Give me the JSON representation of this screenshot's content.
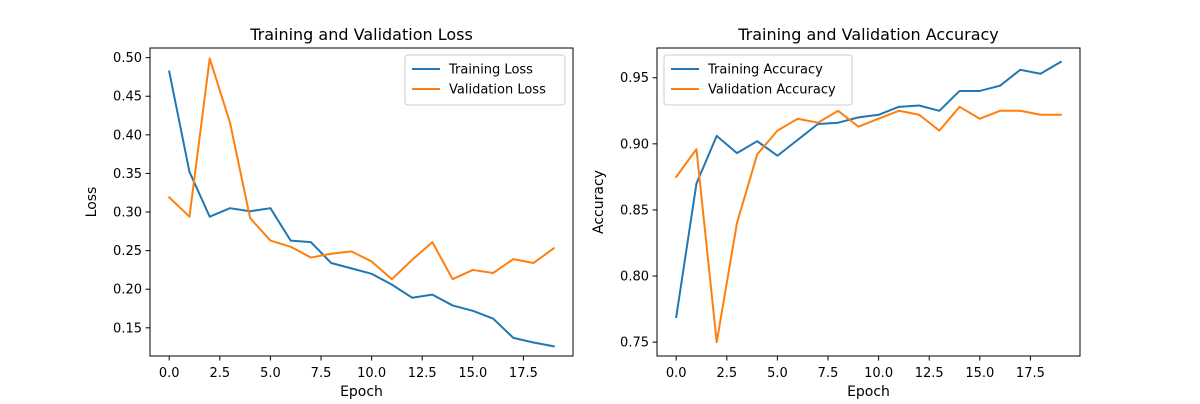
{
  "chart_data": [
    {
      "type": "line",
      "title": "Training and Validation Loss",
      "xlabel": "Epoch",
      "ylabel": "Loss",
      "xlim": [
        -0.95,
        19.95
      ],
      "ylim": [
        0.1135,
        0.5125
      ],
      "x_ticks": [
        0.0,
        2.5,
        5.0,
        7.5,
        10.0,
        12.5,
        15.0,
        17.5
      ],
      "x_tick_labels": [
        "0.0",
        "2.5",
        "5.0",
        "7.5",
        "10.0",
        "12.5",
        "15.0",
        "17.5"
      ],
      "y_ticks": [
        0.15,
        0.2,
        0.25,
        0.3,
        0.35,
        0.4,
        0.45,
        0.5
      ],
      "y_tick_labels": [
        "0.15",
        "0.20",
        "0.25",
        "0.30",
        "0.35",
        "0.40",
        "0.45",
        "0.50"
      ],
      "legend_position": "top-right",
      "grid": false,
      "x": [
        0,
        1,
        2,
        3,
        4,
        5,
        6,
        7,
        8,
        9,
        10,
        11,
        12,
        13,
        14,
        15,
        16,
        17,
        18,
        19
      ],
      "series": [
        {
          "name": "Training Loss",
          "color": "#1f77b4",
          "values": [
            0.482,
            0.352,
            0.294,
            0.305,
            0.301,
            0.305,
            0.263,
            0.261,
            0.234,
            0.227,
            0.22,
            0.206,
            0.189,
            0.193,
            0.179,
            0.172,
            0.162,
            0.137,
            0.131,
            0.126
          ]
        },
        {
          "name": "Validation Loss",
          "color": "#ff7f0e",
          "values": [
            0.319,
            0.294,
            0.499,
            0.416,
            0.292,
            0.263,
            0.255,
            0.241,
            0.246,
            0.249,
            0.236,
            0.213,
            0.238,
            0.261,
            0.213,
            0.225,
            0.221,
            0.239,
            0.234,
            0.253
          ]
        }
      ]
    },
    {
      "type": "line",
      "title": "Training and Validation Accuracy",
      "xlabel": "Epoch",
      "ylabel": "Accuracy",
      "xlim": [
        -0.95,
        19.95
      ],
      "ylim": [
        0.7395,
        0.9725
      ],
      "x_ticks": [
        0.0,
        2.5,
        5.0,
        7.5,
        10.0,
        12.5,
        15.0,
        17.5
      ],
      "x_tick_labels": [
        "0.0",
        "2.5",
        "5.0",
        "7.5",
        "10.0",
        "12.5",
        "15.0",
        "17.5"
      ],
      "y_ticks": [
        0.75,
        0.8,
        0.85,
        0.9,
        0.95
      ],
      "y_tick_labels": [
        "0.75",
        "0.80",
        "0.85",
        "0.90",
        "0.95"
      ],
      "legend_position": "top-left",
      "grid": false,
      "x": [
        0,
        1,
        2,
        3,
        4,
        5,
        6,
        7,
        8,
        9,
        10,
        11,
        12,
        13,
        14,
        15,
        16,
        17,
        18,
        19
      ],
      "series": [
        {
          "name": "Training Accuracy",
          "color": "#1f77b4",
          "values": [
            0.769,
            0.87,
            0.906,
            0.893,
            0.902,
            0.891,
            0.903,
            0.915,
            0.916,
            0.92,
            0.922,
            0.928,
            0.929,
            0.925,
            0.94,
            0.94,
            0.944,
            0.956,
            0.953,
            0.962
          ]
        },
        {
          "name": "Validation Accuracy",
          "color": "#ff7f0e",
          "values": [
            0.875,
            0.896,
            0.75,
            0.84,
            0.892,
            0.91,
            0.919,
            0.916,
            0.925,
            0.913,
            0.919,
            0.925,
            0.922,
            0.91,
            0.928,
            0.919,
            0.925,
            0.925,
            0.922,
            0.922
          ]
        }
      ]
    }
  ]
}
